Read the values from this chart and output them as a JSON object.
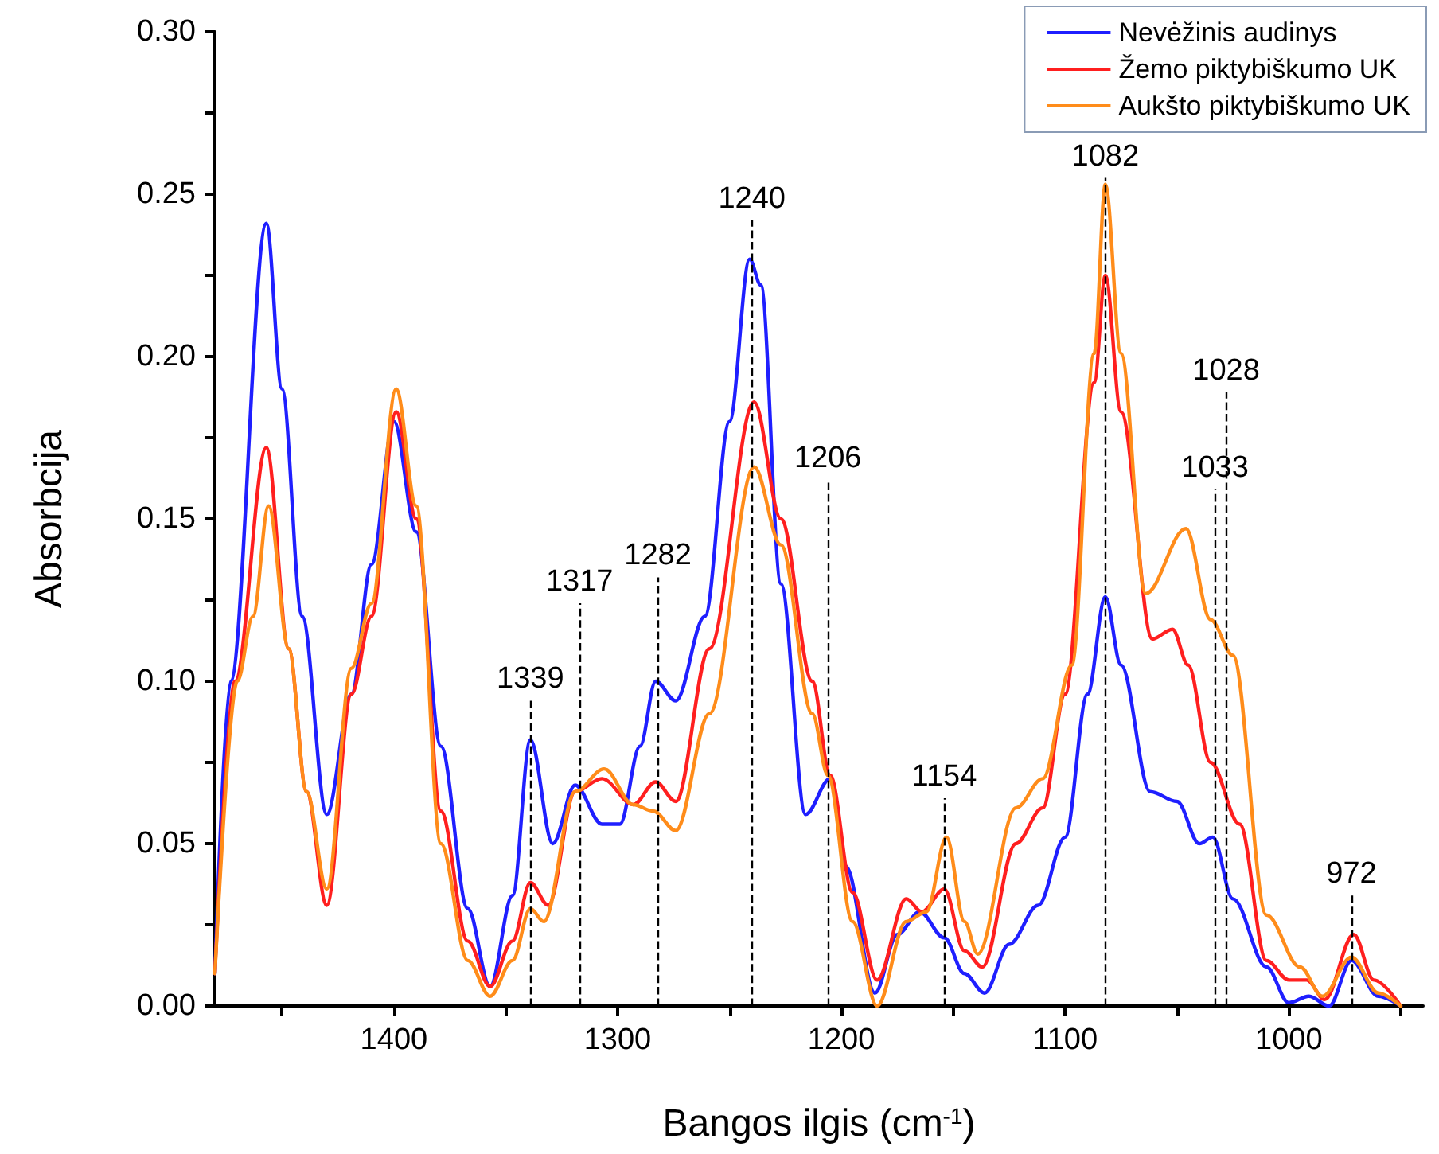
{
  "chart_data": {
    "type": "line",
    "xlabel": "Bangos ilgis (cm$^{-1}$)",
    "ylabel": "Absorbcija",
    "xlim": [
      1480,
      940
    ],
    "ylim": [
      0,
      0.3
    ],
    "xticks": [
      {
        "value": 950,
        "label": null
      },
      1000,
      {
        "value": 1050,
        "label": null
      },
      1100,
      {
        "value": 1150,
        "label": null
      },
      1200,
      {
        "value": 1250,
        "label": null
      },
      1300,
      {
        "value": 1350,
        "label": null
      },
      1400,
      {
        "value": 1450,
        "label": null
      }
    ],
    "yticks": [
      {
        "value": 0,
        "label": "0.00"
      },
      {
        "value": 0.025,
        "label": null
      },
      {
        "value": 0.05,
        "label": "0.05"
      },
      {
        "value": 0.075,
        "label": null
      },
      {
        "value": 0.1,
        "label": "0.10"
      },
      {
        "value": 0.125,
        "label": null
      },
      {
        "value": 0.15,
        "label": "0.15"
      },
      {
        "value": 0.175,
        "label": null
      },
      {
        "value": 0.2,
        "label": "0.20"
      },
      {
        "value": 0.225,
        "label": null
      },
      {
        "value": 0.25,
        "label": "0.25"
      },
      {
        "value": 0.275,
        "label": null
      },
      {
        "value": 0.3,
        "label": "0.30"
      }
    ],
    "grid": false,
    "legend": "top right",
    "marker": "none",
    "line_style": "solid",
    "series": [
      {
        "name": "Nevėžinis audinys",
        "color": "#1f1fff",
        "x": [
          1480,
          1473,
          1457,
          1450,
          1441,
          1430,
          1419,
          1410,
          1400,
          1390,
          1379,
          1367,
          1357,
          1347,
          1339,
          1329,
          1319,
          1307,
          1299,
          1290,
          1283,
          1274,
          1261,
          1250,
          1241,
          1236,
          1227,
          1216,
          1205,
          1198,
          1185,
          1175,
          1165,
          1154,
          1145,
          1136,
          1125,
          1112,
          1100,
          1090,
          1082,
          1075,
          1062,
          1050,
          1040,
          1034,
          1025,
          1010,
          1000,
          991,
          982,
          972,
          960,
          950
        ],
        "values": [
          0.01,
          0.1,
          0.241,
          0.19,
          0.12,
          0.059,
          0.096,
          0.136,
          0.18,
          0.146,
          0.08,
          0.03,
          0.006,
          0.034,
          0.082,
          0.05,
          0.068,
          0.056,
          0.056,
          0.08,
          0.1,
          0.094,
          0.12,
          0.18,
          0.23,
          0.222,
          0.13,
          0.059,
          0.07,
          0.043,
          0.004,
          0.022,
          0.029,
          0.021,
          0.01,
          0.004,
          0.019,
          0.031,
          0.052,
          0.096,
          0.126,
          0.105,
          0.066,
          0.063,
          0.05,
          0.052,
          0.033,
          0.012,
          0.001,
          0.003,
          0.0,
          0.014,
          0.003,
          0
        ]
      },
      {
        "name": "Žemo piktybiškumo UK",
        "color": "#ff1f1f",
        "x": [
          1480,
          1471,
          1457,
          1447,
          1439,
          1430,
          1419,
          1410,
          1399,
          1390,
          1379,
          1367,
          1357,
          1347,
          1339,
          1331,
          1319,
          1307,
          1293,
          1283,
          1274,
          1259,
          1239,
          1227,
          1213,
          1205,
          1195,
          1184,
          1171,
          1164,
          1154,
          1145,
          1137,
          1122,
          1110,
          1100,
          1087,
          1082,
          1075,
          1061,
          1052,
          1045,
          1035,
          1022,
          1010,
          1000,
          992,
          984,
          971,
          962,
          950
        ],
        "values": [
          0.01,
          0.1,
          0.172,
          0.11,
          0.066,
          0.031,
          0.096,
          0.12,
          0.183,
          0.15,
          0.06,
          0.02,
          0.006,
          0.02,
          0.038,
          0.031,
          0.066,
          0.07,
          0.062,
          0.069,
          0.063,
          0.11,
          0.186,
          0.15,
          0.1,
          0.071,
          0.035,
          0.008,
          0.033,
          0.029,
          0.036,
          0.017,
          0.012,
          0.05,
          0.061,
          0.096,
          0.192,
          0.225,
          0.183,
          0.113,
          0.116,
          0.105,
          0.075,
          0.056,
          0.014,
          0.008,
          0.008,
          0.002,
          0.022,
          0.008,
          0
        ]
      },
      {
        "name": "Aukšto piktybiškumo UK",
        "color": "#ff8c1a",
        "x": [
          1480,
          1470,
          1463,
          1456,
          1447,
          1439,
          1430,
          1419,
          1410,
          1399,
          1390,
          1379,
          1367,
          1357,
          1347,
          1339,
          1333,
          1319,
          1306,
          1293,
          1284,
          1274,
          1259,
          1239,
          1227,
          1213,
          1206,
          1195,
          1184,
          1171,
          1162,
          1153,
          1145,
          1139,
          1122,
          1110,
          1097,
          1087,
          1082,
          1075,
          1064,
          1046,
          1035,
          1025,
          1010,
          995,
          985,
          972,
          960,
          950
        ],
        "values": [
          0.01,
          0.1,
          0.12,
          0.154,
          0.11,
          0.066,
          0.036,
          0.104,
          0.124,
          0.19,
          0.154,
          0.05,
          0.014,
          0.003,
          0.014,
          0.03,
          0.026,
          0.066,
          0.073,
          0.062,
          0.06,
          0.054,
          0.09,
          0.166,
          0.142,
          0.09,
          0.071,
          0.026,
          0,
          0.026,
          0.029,
          0.052,
          0.026,
          0.016,
          0.061,
          0.07,
          0.105,
          0.201,
          0.253,
          0.201,
          0.127,
          0.147,
          0.119,
          0.108,
          0.028,
          0.012,
          0.003,
          0.015,
          0.004,
          0
        ]
      }
    ],
    "ref_lines": [
      {
        "axis": "x",
        "value": 1339,
        "label": "1339"
      },
      {
        "axis": "x",
        "value": 1317,
        "label": "1317"
      },
      {
        "axis": "x",
        "value": 1282,
        "label": "1282"
      },
      {
        "axis": "x",
        "value": 1240,
        "label": "1240"
      },
      {
        "axis": "x",
        "value": 1206,
        "label": "1206"
      },
      {
        "axis": "x",
        "value": 1154,
        "label": "1154"
      },
      {
        "axis": "x",
        "value": 1082,
        "label": "1082"
      },
      {
        "axis": "x",
        "value": 1033,
        "label": "1033"
      },
      {
        "axis": "x",
        "value": 1028,
        "label": "1028"
      },
      {
        "axis": "x",
        "value": 972,
        "label": "972"
      }
    ]
  }
}
